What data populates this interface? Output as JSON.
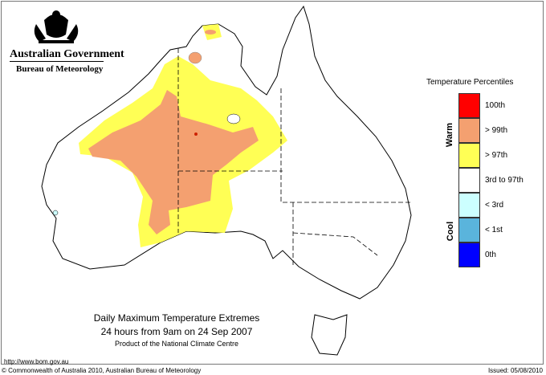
{
  "header": {
    "government": "Australian Government",
    "bureau": "Bureau of Meteorology",
    "logo": "coat-of-arms"
  },
  "legend": {
    "title": "Temperature Percentiles",
    "warm_label": "Warm",
    "cool_label": "Cool",
    "items": [
      {
        "label": "100th",
        "color": "#ff0000"
      },
      {
        "label": "> 99th",
        "color": "#f4a070"
      },
      {
        "label": "> 97th",
        "color": "#ffff55"
      },
      {
        "label": "3rd to 97th",
        "color": "#ffffff"
      },
      {
        "label": "< 3rd",
        "color": "#ccffff"
      },
      {
        "label": "< 1st",
        "color": "#5ab4dc"
      },
      {
        "label": "0th",
        "color": "#0000ff"
      }
    ]
  },
  "map": {
    "title": "Daily Maximum Temperature Extremes",
    "subtitle": "24 hours from 9am on 24 Sep 2007",
    "product": "Product of the National Climate Centre"
  },
  "footer": {
    "url": "http://www.bom.gov.au",
    "copyright": "© Commonwealth of Australia 2010, Australian Bureau of Meteorology",
    "issued": "Issued: 05/08/2010"
  }
}
